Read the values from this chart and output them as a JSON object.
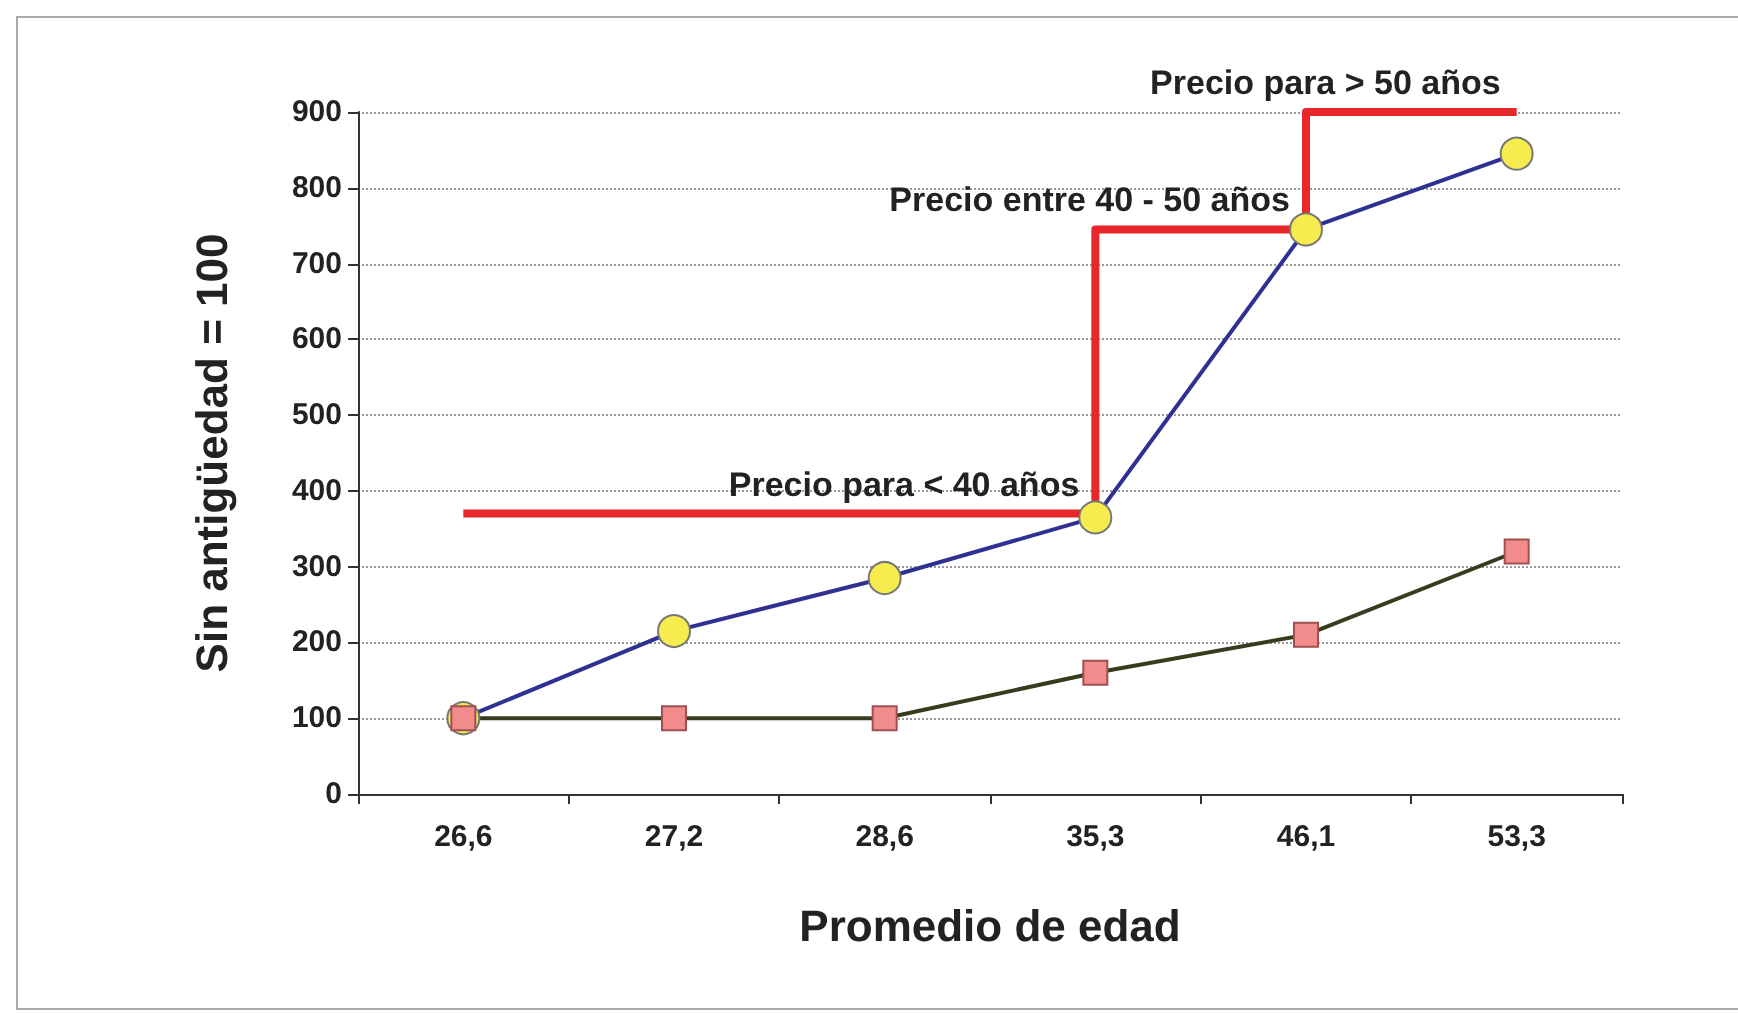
{
  "chart_data": {
    "type": "line",
    "xlabel": "Promedio de edad",
    "ylabel": "Sin antigüedad = 100",
    "categories": [
      "26,6",
      "27,2",
      "28,6",
      "35,3",
      "46,1",
      "53,3"
    ],
    "series": [
      {
        "color": "#2e3192",
        "marker": "circle",
        "values": [
          100,
          215,
          285,
          365,
          745,
          845
        ]
      },
      {
        "color": "#3a3a1e",
        "marker": "square",
        "values": [
          100,
          100,
          100,
          160,
          210,
          320
        ]
      },
      {
        "type": "step",
        "color": "#e8262b",
        "marker": "none",
        "values": [
          370,
          370,
          370,
          370,
          745,
          900
        ]
      }
    ],
    "ylim": [
      0,
      900
    ],
    "yticks": [
      0,
      100,
      200,
      300,
      400,
      500,
      600,
      700,
      800,
      900
    ],
    "grid": "y",
    "annotations": [
      {
        "text": "Precio para < 40 años",
        "x": "35,3",
        "y": 370
      },
      {
        "text": "Precio entre 40 - 50 años",
        "x": "46,1",
        "y": 745
      },
      {
        "text": "Precio para > 50 años",
        "x": "53,3",
        "y": 900
      }
    ]
  }
}
